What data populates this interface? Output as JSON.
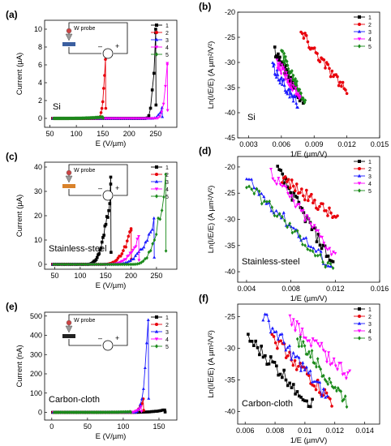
{
  "colors": [
    "#000000",
    "#e8000b",
    "#1a1aff",
    "#ff00ff",
    "#1b8a1b"
  ],
  "chart_data": [
    {
      "panel": "(a)",
      "type": "line",
      "label": "Si",
      "xlabel": "E (V/µm)",
      "ylabel": "Current (µA)",
      "xlim": [
        40,
        290
      ],
      "ylim": [
        -1,
        11
      ],
      "xticks": [
        50,
        100,
        150,
        200,
        250
      ],
      "yticks": [
        0,
        2,
        4,
        6,
        8,
        10
      ],
      "inset": {
        "label": "W probe"
      },
      "series": [
        {
          "name": "1",
          "onset": 230,
          "end": 250,
          "peak": 10.0
        },
        {
          "name": "2",
          "onset": 140,
          "end": 155,
          "peak": 7.5
        },
        {
          "name": "3",
          "onset": 240,
          "end": 262,
          "peak": 1.2
        },
        {
          "name": "4",
          "onset": 250,
          "end": 272,
          "peak": 6.0
        },
        {
          "name": "5",
          "onset": 60,
          "end": 150,
          "peak": 0.15
        }
      ]
    },
    {
      "panel": "(b)",
      "type": "scatter",
      "label": "Si",
      "xlabel": "1/E (µm/V)",
      "ylabel": "Ln(I/E/E) (A µm²/V²)",
      "xlim": [
        0.002,
        0.015
      ],
      "ylim": [
        -45,
        -20
      ],
      "xticks": [
        0.003,
        0.006,
        0.009,
        0.012,
        0.015
      ],
      "yticks": [
        -45,
        -40,
        -35,
        -30,
        -25,
        -20
      ],
      "series": [
        {
          "name": "1",
          "x0": 0.0054,
          "y0": -27.5,
          "x1": 0.008,
          "y1": -38.0
        },
        {
          "name": "2",
          "x0": 0.0078,
          "y0": -24.0,
          "x1": 0.012,
          "y1": -36.0
        },
        {
          "name": "3",
          "x0": 0.0052,
          "y0": -31.0,
          "x1": 0.0075,
          "y1": -38.5
        },
        {
          "name": "4",
          "x0": 0.0056,
          "y0": -30.0,
          "x1": 0.0078,
          "y1": -37.0
        },
        {
          "name": "5",
          "x0": 0.006,
          "y0": -28.0,
          "x1": 0.0082,
          "y1": -37.5
        }
      ]
    },
    {
      "panel": "(c)",
      "type": "line",
      "label": "Stainless-steel",
      "xlabel": "E (V/µm)",
      "ylabel": "Current (µA)",
      "xlim": [
        30,
        290
      ],
      "ylim": [
        -2,
        42
      ],
      "xticks": [
        50,
        100,
        150,
        200,
        250
      ],
      "yticks": [
        0,
        10,
        20,
        30,
        40
      ],
      "inset": {
        "label": "W probe"
      },
      "series": [
        {
          "name": "1",
          "onset": 110,
          "end": 160,
          "peak": 33.0
        },
        {
          "name": "2",
          "onset": 140,
          "end": 200,
          "peak": 14.0
        },
        {
          "name": "3",
          "onset": 160,
          "end": 245,
          "peak": 19.0
        },
        {
          "name": "4",
          "onset": 150,
          "end": 215,
          "peak": 11.5
        },
        {
          "name": "5",
          "onset": 200,
          "end": 268,
          "peak": 37.0
        }
      ]
    },
    {
      "panel": "(d)",
      "type": "scatter",
      "label": "Stainless-steel",
      "xlabel": "1/E (µm/V)",
      "ylabel": "Ln(I/E/E) (A µm²/V²)",
      "xlim": [
        0.0032,
        0.016
      ],
      "ylim": [
        -42,
        -18
      ],
      "xticks": [
        0.004,
        0.008,
        0.012,
        0.016
      ],
      "yticks": [
        -40,
        -35,
        -30,
        -25,
        -20
      ],
      "series": [
        {
          "name": "1",
          "x0": 0.0068,
          "y0": -20.5,
          "x1": 0.0118,
          "y1": -38.5
        },
        {
          "name": "2",
          "x0": 0.0072,
          "y0": -22.0,
          "x1": 0.0122,
          "y1": -30.0
        },
        {
          "name": "3",
          "x0": 0.004,
          "y0": -22.5,
          "x1": 0.0116,
          "y1": -39.0
        },
        {
          "name": "4",
          "x0": 0.0062,
          "y0": -21.0,
          "x1": 0.012,
          "y1": -37.0
        },
        {
          "name": "5",
          "x0": 0.004,
          "y0": -23.0,
          "x1": 0.0118,
          "y1": -40.0
        }
      ]
    },
    {
      "panel": "(e)",
      "type": "line",
      "label": "Carbon-cloth",
      "xlabel": "E (V/µm)",
      "ylabel": "Current (nA)",
      "xlim": [
        -10,
        175
      ],
      "ylim": [
        -40,
        520
      ],
      "xticks": [
        0,
        50,
        100,
        150
      ],
      "yticks": [
        0,
        100,
        200,
        300,
        400,
        500
      ],
      "inset": {
        "label": "W probe"
      },
      "series": [
        {
          "name": "1",
          "onset": 100,
          "end": 158,
          "peak": 12
        },
        {
          "name": "2",
          "onset": 110,
          "end": 128,
          "peak": 70
        },
        {
          "name": "3",
          "onset": 115,
          "end": 135,
          "peak": 480
        },
        {
          "name": "4",
          "onset": 105,
          "end": 125,
          "peak": 30
        },
        {
          "name": "5",
          "onset": 50,
          "end": 110,
          "peak": 3
        }
      ]
    },
    {
      "panel": "(f)",
      "type": "scatter",
      "label": "Carbon-cloth",
      "xlabel": "1/E (µm/V)",
      "ylabel": "Ln(I/E/E) (A µm²/V²)",
      "xlim": [
        0.0055,
        0.015
      ],
      "ylim": [
        -42,
        -23
      ],
      "xticks": [
        0.006,
        0.008,
        0.01,
        0.012,
        0.014
      ],
      "yticks": [
        -40,
        -35,
        -30,
        -25
      ],
      "series": [
        {
          "name": "1",
          "x0": 0.0062,
          "y0": -28.5,
          "x1": 0.0105,
          "y1": -39.0
        },
        {
          "name": "2",
          "x0": 0.0078,
          "y0": -28.0,
          "x1": 0.0118,
          "y1": -38.5
        },
        {
          "name": "3",
          "x0": 0.0072,
          "y0": -25.0,
          "x1": 0.0115,
          "y1": -38.0
        },
        {
          "name": "4",
          "x0": 0.009,
          "y0": -25.5,
          "x1": 0.013,
          "y1": -34.5
        },
        {
          "name": "5",
          "x0": 0.0095,
          "y0": -28.5,
          "x1": 0.0128,
          "y1": -38.5
        }
      ]
    }
  ]
}
